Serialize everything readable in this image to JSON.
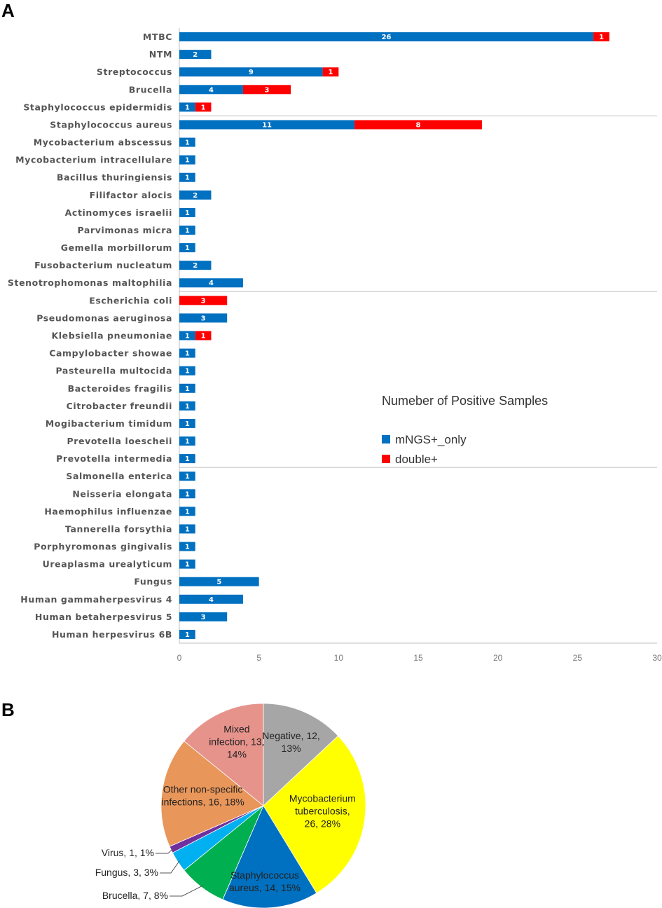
{
  "panels": {
    "a": "A",
    "b": "B"
  },
  "chart_data": [
    {
      "type": "bar",
      "orientation": "horizontal",
      "stacked": true,
      "title": "",
      "xlim": [
        0,
        30
      ],
      "xticks": [
        0,
        5,
        10,
        15,
        20,
        25,
        30
      ],
      "categories": [
        "MTBC",
        "NTM",
        "Streptococcus",
        "Brucella",
        "Staphylococcus epidermidis",
        "Staphylococcus aureus",
        "Mycobacterium abscessus",
        "Mycobacterium intracellulare",
        "Bacillus thuringiensis",
        "Filifactor alocis",
        "Actinomyces israelii",
        "Parvimonas micra",
        "Gemella morbillorum",
        "Fusobacterium nucleatum",
        "Stenotrophomonas maltophilia",
        "Escherichia coli",
        "Pseudomonas aeruginosa",
        "Klebsiella pneumoniae",
        "Campylobacter showae",
        "Pasteurella multocida",
        "Bacteroides fragilis",
        "Citrobacter freundii",
        "Mogibacterium timidum",
        "Prevotella loescheii",
        "Prevotella intermedia",
        "Salmonella enterica",
        "Neisseria elongata",
        "Haemophilus influenzae",
        "Tannerella forsythia",
        "Porphyromonas gingivalis",
        "Ureaplasma urealyticum",
        "Fungus",
        "Human gammaherpesvirus 4",
        "Human betaherpesvirus 5",
        "Human herpesvirus 6B"
      ],
      "series": [
        {
          "name": "mNGS+_only",
          "color": "#0070C0",
          "values": [
            26,
            2,
            9,
            4,
            1,
            11,
            1,
            1,
            1,
            2,
            1,
            1,
            1,
            2,
            4,
            0,
            3,
            1,
            1,
            1,
            1,
            1,
            1,
            1,
            1,
            1,
            1,
            1,
            1,
            1,
            1,
            5,
            4,
            3,
            1
          ]
        },
        {
          "name": "double+",
          "color": "#FF0000",
          "values": [
            1,
            0,
            1,
            3,
            1,
            8,
            0,
            0,
            0,
            0,
            0,
            0,
            0,
            0,
            0,
            3,
            0,
            1,
            0,
            0,
            0,
            0,
            0,
            0,
            0,
            0,
            0,
            0,
            0,
            0,
            0,
            0,
            0,
            0,
            0
          ]
        }
      ],
      "group_separators_after": [
        "Staphylococcus epidermidis",
        "Stenotrophomonas maltophilia",
        "Prevotella intermedia"
      ],
      "legend": {
        "title": "Numeber of Positive Samples",
        "position": "center-right"
      }
    },
    {
      "type": "pie",
      "slices": [
        {
          "name": "Negative",
          "value": 12,
          "percent": 13,
          "color": "#A6A6A6",
          "label_lines": [
            "Negative, 12,",
            "13%"
          ]
        },
        {
          "name": "Mycobacterium tuberculosis",
          "value": 26,
          "percent": 28,
          "color": "#FFFF00",
          "label_lines": [
            "Mycobacterium",
            "tuberculosis,",
            "26, 28%"
          ]
        },
        {
          "name": "Staphylococcus aureus",
          "value": 14,
          "percent": 15,
          "color": "#0070C0",
          "label_lines": [
            "Staphylococcus",
            "aureus, 14, 15%"
          ]
        },
        {
          "name": "Brucella",
          "value": 7,
          "percent": 8,
          "color": "#00B050",
          "label_lines": [
            "Brucella, 7, 8%"
          ]
        },
        {
          "name": "Fungus",
          "value": 3,
          "percent": 3,
          "color": "#00B0F0",
          "label_lines": [
            "Fungus, 3, 3%"
          ]
        },
        {
          "name": "Virus",
          "value": 1,
          "percent": 1,
          "color": "#7030A0",
          "label_lines": [
            "Virus, 1, 1%"
          ]
        },
        {
          "name": "Other non-specific infections",
          "value": 16,
          "percent": 18,
          "color": "#E8965A",
          "label_lines": [
            "Other non-specific",
            "infections, 16, 18%"
          ]
        },
        {
          "name": "Mixed infection",
          "value": 13,
          "percent": 14,
          "color": "#E6938C",
          "label_lines": [
            "Mixed",
            "infection, 13,",
            "14%"
          ]
        }
      ]
    }
  ]
}
